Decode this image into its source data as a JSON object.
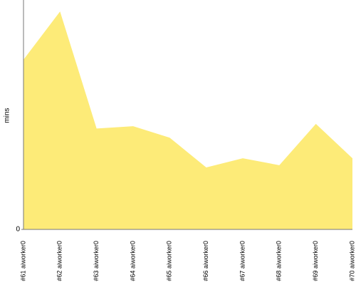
{
  "chart_data": {
    "type": "area",
    "y_label": "mins",
    "categories": [
      "#61 aiworker0",
      "#62 aiworker0",
      "#63 aiworker0",
      "#64 aiworker0",
      "#65 aiworker0",
      "#66 aiworker0",
      "#67 aiworker0",
      "#68 aiworker0",
      "#69 aiworker0",
      "#70 aiworker0"
    ],
    "values": [
      74,
      95,
      44,
      45,
      40,
      27,
      31,
      28,
      46,
      31
    ],
    "color": "#fdeb78",
    "ylim": [
      0,
      100
    ],
    "yticks": [
      0
    ]
  }
}
